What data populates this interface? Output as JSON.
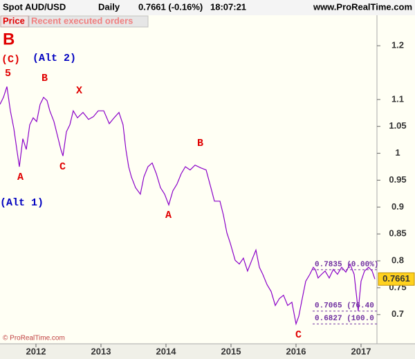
{
  "chart_data": {
    "type": "line",
    "title": "Spot AUD/USD",
    "timeframe": "Daily",
    "quote": "0.7661 (-0.16%)",
    "time": "18:07:21",
    "source": "www.ProRealTime.com",
    "tabs": [
      "Price",
      "Recent executed orders"
    ],
    "panel_label": "B",
    "copyright": "© ProRealTime.com",
    "series": [
      {
        "name": "AUD/USD",
        "color": "#8a00c8",
        "x": [
          2011.447,
          2011.5,
          2011.553,
          2011.607,
          2011.66,
          2011.713,
          2011.745,
          2011.798,
          2011.851,
          2011.904,
          2011.958,
          2012.011,
          2012.064,
          2012.117,
          2012.17,
          2012.213,
          2012.277,
          2012.33,
          2012.383,
          2012.415,
          2012.468,
          2012.521,
          2012.574,
          2012.638,
          2012.724,
          2012.809,
          2012.883,
          2012.958,
          2013.043,
          2013.128,
          2013.202,
          2013.277,
          2013.34,
          2013.383,
          2013.426,
          2013.468,
          2013.532,
          2013.606,
          2013.66,
          2013.723,
          2013.787,
          2013.851,
          2013.915,
          2013.979,
          2014.043,
          2014.106,
          2014.17,
          2014.234,
          2014.298,
          2014.372,
          2014.447,
          2014.532,
          2014.617,
          2014.691,
          2014.745,
          2014.83,
          2014.883,
          2014.936,
          2014.989,
          2015.064,
          2015.128,
          2015.191,
          2015.255,
          2015.319,
          2015.383,
          2015.436,
          2015.489,
          2015.553,
          2015.617,
          2015.681,
          2015.745,
          2015.808,
          2015.872,
          2015.936,
          2016.0,
          2016.043,
          2016.096,
          2016.149,
          2016.213,
          2016.266,
          2016.298,
          2016.34,
          2016.394,
          2016.447,
          2016.511,
          2016.574,
          2016.638,
          2016.702,
          2016.766,
          2016.83,
          2016.894,
          2016.957,
          2017.0,
          2017.053,
          2017.117,
          2017.17,
          2017.213
        ],
        "values": [
          1.091,
          1.104,
          1.124,
          1.079,
          1.046,
          1.001,
          0.975,
          1.027,
          1.007,
          1.053,
          1.066,
          1.059,
          1.091,
          1.104,
          1.098,
          1.079,
          1.059,
          1.033,
          1.007,
          0.995,
          1.04,
          1.053,
          1.079,
          1.066,
          1.076,
          1.063,
          1.068,
          1.079,
          1.079,
          1.055,
          1.066,
          1.076,
          1.053,
          1.007,
          0.975,
          0.956,
          0.936,
          0.924,
          0.956,
          0.975,
          0.982,
          0.962,
          0.936,
          0.924,
          0.904,
          0.93,
          0.943,
          0.962,
          0.975,
          0.969,
          0.978,
          0.973,
          0.969,
          0.936,
          0.911,
          0.911,
          0.885,
          0.852,
          0.833,
          0.801,
          0.794,
          0.805,
          0.781,
          0.801,
          0.82,
          0.788,
          0.775,
          0.756,
          0.743,
          0.717,
          0.73,
          0.736,
          0.717,
          0.723,
          0.6827,
          0.697,
          0.73,
          0.762,
          0.775,
          0.788,
          0.7835,
          0.768,
          0.775,
          0.781,
          0.768,
          0.784,
          0.775,
          0.788,
          0.779,
          0.794,
          0.775,
          0.7065,
          0.762,
          0.781,
          0.788,
          0.781,
          0.7661
        ]
      }
    ],
    "last_price": 0.7661,
    "levels": [
      {
        "value": 0.7835,
        "label": "0.7835 (0.00%)"
      },
      {
        "value": 0.7065,
        "label": "0.7065 (76.40"
      },
      {
        "value": 0.6827,
        "label": "0.6827 (100.0"
      }
    ],
    "annotations": [
      {
        "text": "(C)",
        "color": "#e00000"
      },
      {
        "text": "5",
        "color": "#e00000"
      },
      {
        "text": "(Alt 2)",
        "color": "#0000c0"
      },
      {
        "text": "B",
        "color": "#e00000"
      },
      {
        "text": "X",
        "color": "#e00000"
      },
      {
        "text": "A",
        "color": "#e00000"
      },
      {
        "text": "C",
        "color": "#e00000"
      },
      {
        "text": "(Alt 1)",
        "color": "#0000c0"
      },
      {
        "text": "A",
        "color": "#e00000"
      },
      {
        "text": "B",
        "color": "#e00000"
      },
      {
        "text": "C",
        "color": "#e00000"
      }
    ],
    "xlim": [
      2011.447,
      2017.245
    ],
    "xticks": [
      2012,
      2013,
      2014,
      2015,
      2016,
      2017
    ],
    "ylim": [
      0.6457,
      1.2336
    ],
    "yticks": [
      0.7,
      0.75,
      0.8,
      0.85,
      0.9,
      0.95,
      1,
      1.05,
      1.1,
      1.2
    ]
  }
}
